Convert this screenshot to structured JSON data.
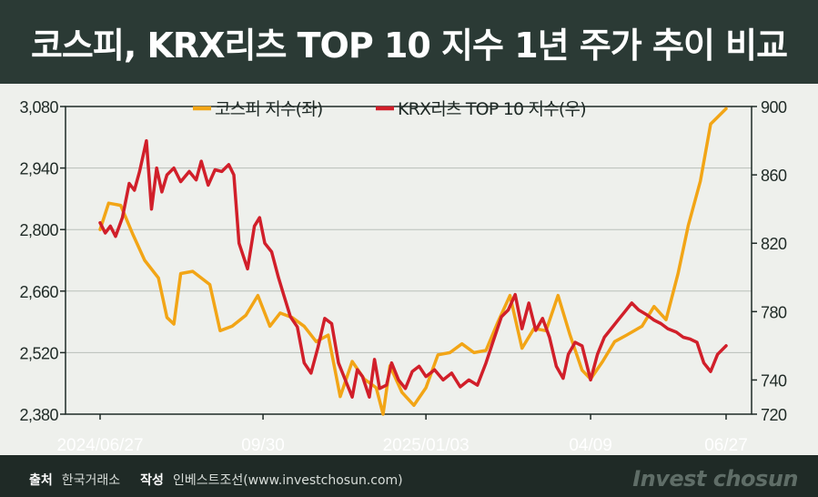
{
  "title": "코스피, KRX리츠 TOP 10 지수 1년 주가 추이 비교",
  "source": {
    "source_label": "출처",
    "source_value": "한국거래소",
    "author_label": "작성",
    "author_value": "인베스트조선(www.investchosun.com)"
  },
  "brand": "Invest chosun",
  "chart_data": {
    "type": "line",
    "title": "",
    "legend_position": "top-center",
    "x_tick_labels": [
      "2024/06/27",
      "09/30",
      "2025/01/03",
      "04/09",
      "06/27"
    ],
    "x_tick_dates": [
      "2024-06-27",
      "2024-09-30",
      "2025-01-03",
      "2025-04-09",
      "2025-06-27"
    ],
    "y_left": {
      "min": 2380,
      "max": 3080,
      "ticks": [
        2380,
        2520,
        2660,
        2800,
        2940,
        3080
      ],
      "tick_labels": [
        "2,380",
        "2,520",
        "2,660",
        "2,800",
        "2,940",
        "3,080"
      ]
    },
    "y_right": {
      "min": 720,
      "max": 900,
      "ticks": [
        720,
        740,
        780,
        820,
        860,
        900
      ],
      "tick_labels": [
        "720",
        "740",
        "780",
        "820",
        "860",
        "900"
      ]
    },
    "grid": true,
    "series": [
      {
        "name": "코스피 지수(좌)",
        "axis": "left",
        "color": "#f2a516",
        "points": [
          [
            "2024-06-27",
            2800
          ],
          [
            "2024-07-02",
            2860
          ],
          [
            "2024-07-09",
            2855
          ],
          [
            "2024-07-16",
            2790
          ],
          [
            "2024-07-23",
            2730
          ],
          [
            "2024-07-31",
            2690
          ],
          [
            "2024-08-05",
            2600
          ],
          [
            "2024-08-09",
            2585
          ],
          [
            "2024-08-13",
            2700
          ],
          [
            "2024-08-20",
            2705
          ],
          [
            "2024-08-30",
            2675
          ],
          [
            "2024-09-05",
            2570
          ],
          [
            "2024-09-12",
            2580
          ],
          [
            "2024-09-20",
            2605
          ],
          [
            "2024-09-27",
            2650
          ],
          [
            "2024-10-04",
            2580
          ],
          [
            "2024-10-10",
            2610
          ],
          [
            "2024-10-17",
            2600
          ],
          [
            "2024-10-24",
            2580
          ],
          [
            "2024-10-31",
            2545
          ],
          [
            "2024-11-07",
            2560
          ],
          [
            "2024-11-14",
            2420
          ],
          [
            "2024-11-21",
            2500
          ],
          [
            "2024-11-28",
            2460
          ],
          [
            "2024-12-05",
            2440
          ],
          [
            "2024-12-09",
            2380
          ],
          [
            "2024-12-13",
            2490
          ],
          [
            "2024-12-20",
            2430
          ],
          [
            "2024-12-27",
            2400
          ],
          [
            "2025-01-03",
            2440
          ],
          [
            "2025-01-10",
            2515
          ],
          [
            "2025-01-17",
            2520
          ],
          [
            "2025-01-24",
            2540
          ],
          [
            "2025-01-31",
            2520
          ],
          [
            "2025-02-07",
            2525
          ],
          [
            "2025-02-14",
            2590
          ],
          [
            "2025-02-21",
            2650
          ],
          [
            "2025-02-28",
            2530
          ],
          [
            "2025-03-07",
            2575
          ],
          [
            "2025-03-14",
            2570
          ],
          [
            "2025-03-21",
            2650
          ],
          [
            "2025-03-28",
            2560
          ],
          [
            "2025-04-04",
            2480
          ],
          [
            "2025-04-09",
            2460
          ],
          [
            "2025-04-16",
            2500
          ],
          [
            "2025-04-23",
            2545
          ],
          [
            "2025-04-30",
            2560
          ],
          [
            "2025-05-09",
            2580
          ],
          [
            "2025-05-16",
            2625
          ],
          [
            "2025-05-23",
            2595
          ],
          [
            "2025-05-30",
            2700
          ],
          [
            "2025-06-05",
            2810
          ],
          [
            "2025-06-12",
            2910
          ],
          [
            "2025-06-18",
            3040
          ],
          [
            "2025-06-27",
            3075
          ]
        ]
      },
      {
        "name": "KRX리츠 TOP 10 지수(우)",
        "axis": "right",
        "color": "#d11f2a",
        "points": [
          [
            "2024-06-27",
            832
          ],
          [
            "2024-06-30",
            826
          ],
          [
            "2024-07-03",
            830
          ],
          [
            "2024-07-06",
            824
          ],
          [
            "2024-07-10",
            835
          ],
          [
            "2024-07-14",
            855
          ],
          [
            "2024-07-17",
            851
          ],
          [
            "2024-07-20",
            862
          ],
          [
            "2024-07-24",
            880
          ],
          [
            "2024-07-27",
            840
          ],
          [
            "2024-07-30",
            864
          ],
          [
            "2024-08-02",
            850
          ],
          [
            "2024-08-05",
            860
          ],
          [
            "2024-08-09",
            864
          ],
          [
            "2024-08-13",
            856
          ],
          [
            "2024-08-18",
            862
          ],
          [
            "2024-08-22",
            857
          ],
          [
            "2024-08-25",
            868
          ],
          [
            "2024-08-29",
            854
          ],
          [
            "2024-09-02",
            863
          ],
          [
            "2024-09-06",
            862
          ],
          [
            "2024-09-10",
            866
          ],
          [
            "2024-09-13",
            860
          ],
          [
            "2024-09-16",
            820
          ],
          [
            "2024-09-21",
            805
          ],
          [
            "2024-09-25",
            830
          ],
          [
            "2024-09-28",
            835
          ],
          [
            "2024-10-01",
            820
          ],
          [
            "2024-10-05",
            815
          ],
          [
            "2024-10-09",
            800
          ],
          [
            "2024-10-12",
            790
          ],
          [
            "2024-10-16",
            777
          ],
          [
            "2024-10-20",
            771
          ],
          [
            "2024-10-24",
            750
          ],
          [
            "2024-10-28",
            744
          ],
          [
            "2024-11-01",
            759
          ],
          [
            "2024-11-05",
            776
          ],
          [
            "2024-11-09",
            773
          ],
          [
            "2024-11-13",
            750
          ],
          [
            "2024-11-17",
            740
          ],
          [
            "2024-11-21",
            730
          ],
          [
            "2024-11-24",
            746
          ],
          [
            "2024-11-27",
            742
          ],
          [
            "2024-12-01",
            730
          ],
          [
            "2024-12-04",
            752
          ],
          [
            "2024-12-07",
            735
          ],
          [
            "2024-12-11",
            737
          ],
          [
            "2024-12-14",
            750
          ],
          [
            "2024-12-18",
            740
          ],
          [
            "2024-12-22",
            735
          ],
          [
            "2024-12-26",
            745
          ],
          [
            "2024-12-30",
            748
          ],
          [
            "2025-01-03",
            742
          ],
          [
            "2025-01-08",
            746
          ],
          [
            "2025-01-13",
            740
          ],
          [
            "2025-01-18",
            744
          ],
          [
            "2025-01-23",
            736
          ],
          [
            "2025-01-28",
            740
          ],
          [
            "2025-02-02",
            737
          ],
          [
            "2025-02-07",
            750
          ],
          [
            "2025-02-11",
            762
          ],
          [
            "2025-02-16",
            777
          ],
          [
            "2025-02-20",
            781
          ],
          [
            "2025-02-24",
            790
          ],
          [
            "2025-02-28",
            770
          ],
          [
            "2025-03-04",
            785
          ],
          [
            "2025-03-08",
            769
          ],
          [
            "2025-03-12",
            776
          ],
          [
            "2025-03-16",
            765
          ],
          [
            "2025-03-20",
            748
          ],
          [
            "2025-03-24",
            741
          ],
          [
            "2025-03-27",
            755
          ],
          [
            "2025-03-31",
            762
          ],
          [
            "2025-04-04",
            760
          ],
          [
            "2025-04-09",
            740
          ],
          [
            "2025-04-13",
            755
          ],
          [
            "2025-04-17",
            765
          ],
          [
            "2025-04-21",
            770
          ],
          [
            "2025-04-25",
            775
          ],
          [
            "2025-04-29",
            780
          ],
          [
            "2025-05-03",
            785
          ],
          [
            "2025-05-07",
            781
          ],
          [
            "2025-05-12",
            778
          ],
          [
            "2025-05-16",
            775
          ],
          [
            "2025-05-20",
            773
          ],
          [
            "2025-05-24",
            770
          ],
          [
            "2025-05-29",
            768
          ],
          [
            "2025-06-02",
            765
          ],
          [
            "2025-06-06",
            764
          ],
          [
            "2025-06-10",
            762
          ],
          [
            "2025-06-14",
            750
          ],
          [
            "2025-06-18",
            745
          ],
          [
            "2025-06-22",
            755
          ],
          [
            "2025-06-27",
            760
          ]
        ]
      }
    ]
  }
}
